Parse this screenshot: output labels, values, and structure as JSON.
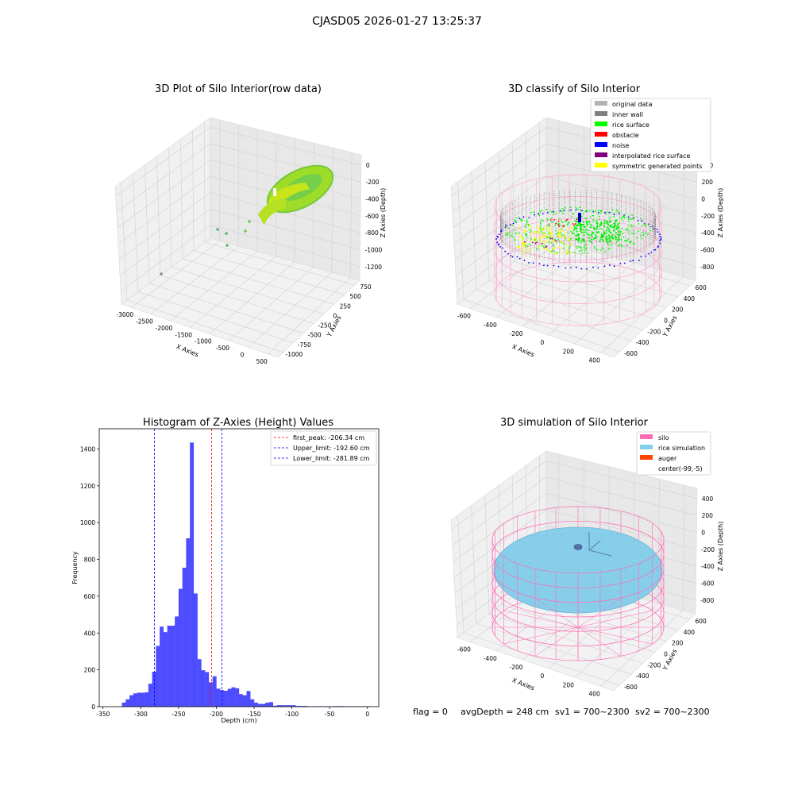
{
  "suptitle": "CJASD05 2026-01-27 13:25:37",
  "chart_data": [
    {
      "type": "scatter3d",
      "title": "3D Plot of Silo Interior(row data)",
      "xlabel": "X Axies",
      "ylabel": "Y Axies",
      "zlabel": "Z Axies (Depth)",
      "x_ticks": [
        "-3000",
        "-2500",
        "-2000",
        "-1500",
        "-1000",
        "-500",
        "0",
        "500"
      ],
      "y_ticks": [
        "-1000",
        "-750",
        "-500",
        "-250",
        "0",
        "250",
        "500",
        "750"
      ],
      "z_ticks": [
        "0",
        "-200",
        "-400",
        "-600",
        "-800",
        "-1000",
        "-1200"
      ],
      "grid": true
    },
    {
      "type": "scatter3d",
      "title": "3D classify of Silo Interior",
      "xlabel": "X Axies",
      "ylabel": "Y Axies",
      "zlabel": "Z Axies (Depth)",
      "x_ticks": [
        "-600",
        "-400",
        "-200",
        "0",
        "200",
        "400"
      ],
      "y_ticks": [
        "-600",
        "-400",
        "-200",
        "0",
        "200",
        "400",
        "600"
      ],
      "z_ticks": [
        "400",
        "200",
        "0",
        "-200",
        "-400",
        "-600",
        "-800"
      ],
      "legend": [
        {
          "label": "original data",
          "color": "#b3b3b3"
        },
        {
          "label": "inner wall",
          "color": "#808080"
        },
        {
          "label": "rice surface",
          "color": "#00ff00"
        },
        {
          "label": "obstacle",
          "color": "#ff0000"
        },
        {
          "label": "noise",
          "color": "#0000ff"
        },
        {
          "label": "interpolated rice surface",
          "color": "#800080"
        },
        {
          "label": "symmetric generated points",
          "color": "#ffff00"
        }
      ],
      "legend_loc": "top-right",
      "grid": true
    },
    {
      "type": "histogram",
      "title": "Histogram of Z-Axies (Height) Values",
      "xlabel": "Depth (cm)",
      "ylabel": "Frequency",
      "xlim": [
        -355,
        15
      ],
      "ylim": [
        0,
        1510
      ],
      "x_ticks": [
        -350,
        -300,
        -250,
        -200,
        -150,
        -100,
        -50,
        0
      ],
      "y_ticks": [
        0,
        200,
        400,
        600,
        800,
        1000,
        1200,
        1400
      ],
      "bin_width": 5,
      "bins": [
        {
          "x": -325,
          "v": 22
        },
        {
          "x": -320,
          "v": 40
        },
        {
          "x": -315,
          "v": 62
        },
        {
          "x": -310,
          "v": 72
        },
        {
          "x": -305,
          "v": 76
        },
        {
          "x": -300,
          "v": 76
        },
        {
          "x": -295,
          "v": 78
        },
        {
          "x": -290,
          "v": 125
        },
        {
          "x": -285,
          "v": 190
        },
        {
          "x": -280,
          "v": 330
        },
        {
          "x": -275,
          "v": 435
        },
        {
          "x": -270,
          "v": 405
        },
        {
          "x": -265,
          "v": 440
        },
        {
          "x": -260,
          "v": 440
        },
        {
          "x": -255,
          "v": 490
        },
        {
          "x": -250,
          "v": 640
        },
        {
          "x": -245,
          "v": 755
        },
        {
          "x": -240,
          "v": 915
        },
        {
          "x": -235,
          "v": 1435
        },
        {
          "x": -230,
          "v": 615
        },
        {
          "x": -225,
          "v": 258
        },
        {
          "x": -220,
          "v": 198
        },
        {
          "x": -215,
          "v": 188
        },
        {
          "x": -210,
          "v": 132
        },
        {
          "x": -205,
          "v": 165
        },
        {
          "x": -200,
          "v": 98
        },
        {
          "x": -195,
          "v": 90
        },
        {
          "x": -190,
          "v": 86
        },
        {
          "x": -185,
          "v": 97
        },
        {
          "x": -180,
          "v": 105
        },
        {
          "x": -175,
          "v": 100
        },
        {
          "x": -170,
          "v": 68
        },
        {
          "x": -165,
          "v": 62
        },
        {
          "x": -160,
          "v": 85
        },
        {
          "x": -155,
          "v": 40
        },
        {
          "x": -150,
          "v": 22
        },
        {
          "x": -145,
          "v": 15
        },
        {
          "x": -140,
          "v": 15
        },
        {
          "x": -135,
          "v": 22
        },
        {
          "x": -130,
          "v": 25
        },
        {
          "x": -125,
          "v": 5
        },
        {
          "x": -120,
          "v": 8
        },
        {
          "x": -115,
          "v": 8
        },
        {
          "x": -110,
          "v": 8
        },
        {
          "x": -105,
          "v": 8
        },
        {
          "x": -100,
          "v": 8
        },
        {
          "x": -95,
          "v": 4
        },
        {
          "x": -90,
          "v": 4
        },
        {
          "x": -85,
          "v": 4
        },
        {
          "x": -80,
          "v": 2
        },
        {
          "x": -75,
          "v": 2
        },
        {
          "x": -70,
          "v": 2
        },
        {
          "x": -65,
          "v": 2
        },
        {
          "x": -60,
          "v": 2
        },
        {
          "x": -55,
          "v": 2
        },
        {
          "x": -50,
          "v": 2
        },
        {
          "x": -45,
          "v": 3
        },
        {
          "x": -40,
          "v": 3
        },
        {
          "x": -35,
          "v": 3
        },
        {
          "x": -30,
          "v": 2
        },
        {
          "x": -25,
          "v": 2
        },
        {
          "x": -20,
          "v": 2
        },
        {
          "x": -15,
          "v": 2
        },
        {
          "x": -10,
          "v": 2
        },
        {
          "x": -5,
          "v": 2
        },
        {
          "x": 0,
          "v": 2
        }
      ],
      "vlines": [
        {
          "label": "first_peak: -206.34 cm",
          "x": -206.34,
          "color": "#ff0000"
        },
        {
          "label": "Upper_limit: -192.60 cm",
          "x": -192.6,
          "color": "#0000ff"
        },
        {
          "label": "Lower_limit: -281.89 cm",
          "x": -281.89,
          "color": "#0000ff"
        }
      ],
      "legend_loc": "top-right",
      "bar_color": "#4d4dff"
    },
    {
      "type": "surface3d",
      "title": "3D simulation of Silo Interior",
      "xlabel": "X Axies",
      "ylabel": "Y Axies",
      "zlabel": "Z Axies (Depth)",
      "x_ticks": [
        "-600",
        "-400",
        "-200",
        "0",
        "200",
        "400"
      ],
      "y_ticks": [
        "-600",
        "-400",
        "-200",
        "0",
        "200",
        "400",
        "600"
      ],
      "z_ticks": [
        "400",
        "200",
        "0",
        "-200",
        "-400",
        "-600",
        "-800"
      ],
      "legend": [
        {
          "label": "silo",
          "color": "#ff69b4"
        },
        {
          "label": "rice simulation",
          "color": "#87ceeb"
        },
        {
          "label": "auger",
          "color": "#ff4500"
        },
        {
          "label": "center(-99,-5)",
          "color": ""
        }
      ],
      "legend_loc": "top-right",
      "grid": true
    }
  ],
  "bottom_text": {
    "flag": "flag = 0",
    "avg": "avgDepth = 248 cm",
    "sv1": "sv1 = 700~2300",
    "sv2": "sv2 = 700~2300"
  }
}
